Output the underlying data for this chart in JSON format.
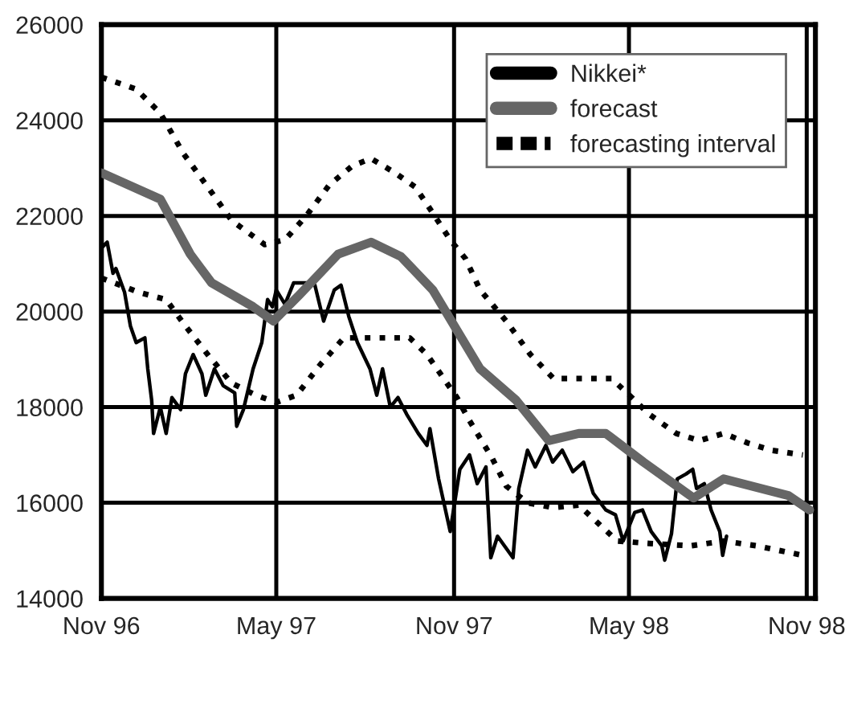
{
  "chart_data": {
    "type": "line",
    "xlim": [
      "1996-11-01",
      "1998-11-10"
    ],
    "ylim": [
      14000,
      26000
    ],
    "xticks": [
      {
        "value": "1996-11-01",
        "label": "Nov 96"
      },
      {
        "value": "1997-05-01",
        "label": "May 97"
      },
      {
        "value": "1997-11-01",
        "label": "Nov 97"
      },
      {
        "value": "1998-05-01",
        "label": "May 98"
      },
      {
        "value": "1998-11-01",
        "label": "Nov 98"
      }
    ],
    "yticks": [
      14000,
      16000,
      18000,
      20000,
      22000,
      24000,
      26000
    ],
    "grid": true,
    "legend": "top right",
    "series": [
      {
        "name": "Nikkei*",
        "color": "#000000",
        "line_style": "solid",
        "x": [
          "1996-11-02",
          "1996-11-07",
          "1996-11-13",
          "1996-11-16",
          "1996-11-25",
          "1996-12-01",
          "1996-12-07",
          "1996-12-16",
          "1996-12-19",
          "1996-12-23",
          "1996-12-25",
          "1997-01-01",
          "1997-01-07",
          "1997-01-13",
          "1997-01-22",
          "1997-01-27",
          "1997-02-04",
          "1997-02-13",
          "1997-02-17",
          "1997-02-26",
          "1997-03-07",
          "1997-03-19",
          "1997-03-21",
          "1997-03-28",
          "1997-04-07",
          "1997-04-16",
          "1997-04-22",
          "1997-04-27",
          "1997-05-01",
          "1997-05-10",
          "1997-05-19",
          "1997-06-01",
          "1997-06-10",
          "1997-06-19",
          "1997-06-30",
          "1997-07-07",
          "1997-07-15",
          "1997-07-24",
          "1997-08-06",
          "1997-08-13",
          "1997-08-19",
          "1997-08-27",
          "1997-09-04",
          "1997-09-13",
          "1997-09-25",
          "1997-10-04",
          "1997-10-07",
          "1997-10-16",
          "1997-10-28",
          "1997-11-07",
          "1997-11-17",
          "1997-11-25",
          "1997-12-04",
          "1997-12-09",
          "1997-12-16",
          "1998-01-01",
          "1998-01-07",
          "1998-01-16",
          "1998-01-24",
          "1998-02-04",
          "1998-02-11",
          "1998-02-21",
          "1998-03-04",
          "1998-03-15",
          "1998-03-25",
          "1998-04-07",
          "1998-04-17",
          "1998-04-25",
          "1998-05-07",
          "1998-05-15",
          "1998-05-24",
          "1998-06-04",
          "1998-06-07",
          "1998-06-14",
          "1998-06-20",
          "1998-06-29",
          "1998-07-06",
          "1998-07-10",
          "1998-07-18",
          "1998-07-25",
          "1998-08-03",
          "1998-08-06",
          "1998-08-10"
        ],
        "values": [
          21350,
          21450,
          20800,
          20900,
          20400,
          19700,
          19350,
          19450,
          18800,
          18150,
          17450,
          18000,
          17450,
          18200,
          17950,
          18700,
          19100,
          18700,
          18250,
          18800,
          18450,
          18300,
          17600,
          17950,
          18800,
          19350,
          20250,
          20100,
          20450,
          20150,
          20600,
          20600,
          20550,
          19800,
          20450,
          20550,
          19900,
          19350,
          18800,
          18250,
          18800,
          18000,
          18200,
          17850,
          17450,
          17200,
          17550,
          16500,
          15400,
          16700,
          17000,
          16400,
          16750,
          14850,
          15300,
          14850,
          16300,
          17100,
          16750,
          17200,
          16850,
          17100,
          16650,
          16850,
          16200,
          15850,
          15750,
          15200,
          15800,
          15850,
          15400,
          15100,
          14800,
          15350,
          16500,
          16600,
          16700,
          16300,
          16400,
          15850,
          15400,
          14900,
          15300
        ]
      },
      {
        "name": "forecast",
        "color": "#666666",
        "line_style": "solid",
        "x": [
          "1996-11-01",
          "1997-01-01",
          "1997-02-01",
          "1997-02-23",
          "1997-04-07",
          "1997-04-28",
          "1997-05-25",
          "1997-07-04",
          "1997-08-07",
          "1997-09-07",
          "1997-10-10",
          "1997-11-28",
          "1998-01-04",
          "1998-02-07",
          "1998-03-10",
          "1998-04-07",
          "1998-05-16",
          "1998-07-07",
          "1998-08-07",
          "1998-10-13",
          "1998-11-04"
        ],
        "values": [
          22900,
          22350,
          21200,
          20600,
          20100,
          19800,
          20350,
          21200,
          21450,
          21150,
          20450,
          18800,
          18150,
          17300,
          17450,
          17450,
          16850,
          16100,
          16500,
          16150,
          15850
        ]
      },
      {
        "name": "forecasting interval",
        "color": "#000000",
        "line_style": "dotted",
        "x": [
          "1996-11-01",
          "1996-12-07",
          "1997-01-01",
          "1997-01-25",
          "1997-02-21",
          "1997-03-16",
          "1997-04-19",
          "1997-05-10",
          "1997-06-01",
          "1997-06-25",
          "1997-07-19",
          "1997-08-07",
          "1997-09-01",
          "1997-09-22",
          "1997-10-07",
          "1997-10-28",
          "1997-11-13",
          "1997-11-28",
          "1997-12-25",
          "1998-01-19",
          "1998-02-12",
          "1998-03-16",
          "1998-04-13",
          "1998-05-04",
          "1998-05-22",
          "1998-06-19",
          "1998-07-13",
          "1998-08-07",
          "1998-09-01",
          "1998-09-25",
          "1998-10-28"
        ],
        "values": [
          24900,
          24650,
          24150,
          23300,
          22550,
          21900,
          21400,
          21500,
          22000,
          22650,
          23050,
          23200,
          22900,
          22600,
          22150,
          21500,
          21100,
          20450,
          19800,
          19100,
          18600,
          18600,
          18600,
          18200,
          17850,
          17450,
          17300,
          17450,
          17250,
          17100,
          17000
        ]
      },
      {
        "color": "#000000",
        "line_style": "dotted",
        "x": [
          "1996-11-01",
          "1996-12-10",
          "1997-01-07",
          "1997-01-25",
          "1997-02-21",
          "1997-03-16",
          "1997-04-10",
          "1997-05-01",
          "1997-05-22",
          "1997-06-16",
          "1997-07-10",
          "1997-08-13",
          "1997-09-16",
          "1997-10-04",
          "1997-11-04",
          "1997-11-16",
          "1997-12-10",
          "1997-12-25",
          "1998-01-16",
          "1998-02-12",
          "1998-03-10",
          "1998-04-19",
          "1998-05-22",
          "1998-07-04",
          "1998-08-07",
          "1998-09-10",
          "1998-10-28"
        ],
        "values": [
          20700,
          20400,
          20250,
          19750,
          19050,
          18500,
          18250,
          18100,
          18250,
          18900,
          19450,
          19450,
          19450,
          19100,
          18200,
          17750,
          16950,
          16350,
          16000,
          15900,
          15950,
          15200,
          15150,
          15100,
          15200,
          15100,
          14900
        ]
      }
    ]
  }
}
